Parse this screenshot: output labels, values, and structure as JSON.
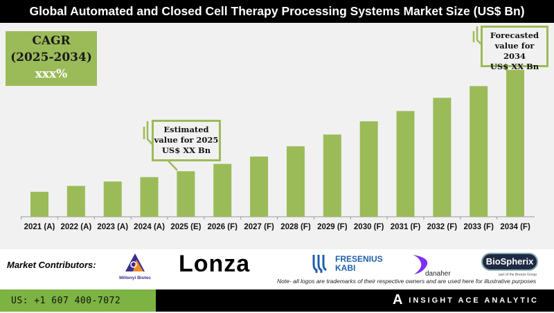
{
  "title": "Global Automated and Closed Cell Therapy Processing Systems Market Size (US$ Bn)",
  "cagr": {
    "label": "CAGR",
    "period": "(2025-2034)",
    "value": "xxx%"
  },
  "callouts": {
    "estimated": [
      "Estimated",
      "value for 2025",
      "US$ XX Bn"
    ],
    "forecasted": [
      "Forecasted",
      "value for 2034",
      "US$ XX Bn"
    ]
  },
  "chart_data": {
    "type": "bar",
    "title": "Global Automated and Closed Cell Therapy Processing Systems Market Size (US$ Bn)",
    "categories": [
      "2021 (A)",
      "2022 (A)",
      "2023 (A)",
      "2024 (A)",
      "2025 (E)",
      "2026 (F)",
      "2027 (F)",
      "2028 (F)",
      "2029 (F)",
      "2030 (F)",
      "2031 (F)",
      "2032 (F)",
      "2033 (F)",
      "2034 (F)"
    ],
    "values": [
      17,
      21,
      24,
      27,
      31,
      36,
      41,
      48,
      56,
      65,
      72,
      81,
      89,
      100
    ],
    "value_note_unit": "relative (2034 = 100), values not printed",
    "color": "#9bbb59",
    "grid": false,
    "y_axis_shown": false
  },
  "contributors": {
    "label": "Market Contributors:",
    "logos": [
      "Miltenyi Biotec",
      "Lonza",
      "FRESENIUS KABI",
      "danaher",
      "BioSpherix"
    ],
    "biospherix_sub": "part of the Breeze Group",
    "note": "Note- all logos are trademarks of their respective owners and are used here for illustrative purposes"
  },
  "footer": {
    "phone": "US: +1 607 400-7072",
    "brand": "INSIGHT ACE ANALYTIC"
  }
}
